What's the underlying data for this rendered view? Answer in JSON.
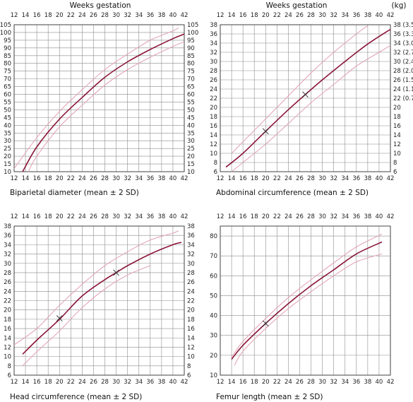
{
  "header_left": "Weeks gestation",
  "header_right": "Weeks gestation",
  "header_kg": "(kg)",
  "colors": {
    "mean": "#8b1538",
    "sd": "#e2a6b8",
    "grid": "#8c8c8c"
  },
  "chart_data": [
    {
      "type": "line",
      "title": "Biparietal diameter (mean ± 2 SD)",
      "xlim": [
        12,
        42
      ],
      "ylim": [
        10,
        105
      ],
      "x_ticks": [
        12,
        14,
        16,
        18,
        20,
        22,
        24,
        26,
        28,
        30,
        32,
        34,
        36,
        38,
        40,
        42
      ],
      "y_ticks": [
        10,
        15,
        20,
        25,
        30,
        35,
        40,
        45,
        50,
        55,
        60,
        65,
        70,
        75,
        80,
        85,
        90,
        95,
        100,
        105
      ],
      "y_ticks_right": [
        "10",
        "15",
        "20",
        "25",
        "30",
        "35",
        "40",
        "45",
        "50",
        "55",
        "60",
        "65",
        "70",
        "75",
        "80",
        "85",
        "90",
        "95",
        "100",
        "105"
      ],
      "series": [
        {
          "role": "mean",
          "x": [
            13.5,
            16,
            20,
            24,
            28,
            32,
            36,
            40,
            42
          ],
          "y": [
            10,
            26,
            44,
            58,
            71,
            81,
            89,
            96,
            99
          ]
        },
        {
          "role": "upper",
          "x": [
            12,
            16,
            20,
            24,
            28,
            32,
            36,
            40,
            41
          ],
          "y": [
            12,
            32,
            49,
            63,
            76,
            86,
            95,
            101,
            103
          ]
        },
        {
          "role": "lower",
          "x": [
            14.5,
            16,
            20,
            24,
            28,
            32,
            36,
            40,
            42
          ],
          "y": [
            10,
            20,
            39,
            53,
            66,
            76,
            84,
            91,
            94
          ]
        }
      ],
      "markers": []
    },
    {
      "type": "line",
      "title": "Abdominal circumference (mean ± 2 SD)",
      "xlim": [
        12,
        42
      ],
      "ylim": [
        6,
        38
      ],
      "x_ticks": [
        12,
        14,
        16,
        18,
        20,
        22,
        24,
        26,
        28,
        30,
        32,
        34,
        36,
        38,
        40,
        42
      ],
      "y_ticks": [
        6,
        8,
        10,
        12,
        14,
        16,
        18,
        20,
        22,
        24,
        26,
        28,
        30,
        32,
        34,
        36,
        38
      ],
      "y_ticks_right": [
        "6",
        "8",
        "10",
        "12",
        "14",
        "16",
        "18",
        "20",
        "22 (0.7)",
        "24 (1.1)",
        "26 (1.5)",
        "28 (2.0)",
        "30 (2.4)",
        "32 (2.7)",
        "34 (3.0)",
        "36 (3.3)",
        "38 (3.5)"
      ],
      "series": [
        {
          "role": "mean",
          "x": [
            13,
            16,
            20,
            24,
            27,
            30,
            34,
            38,
            42
          ],
          "y": [
            7,
            10,
            14.8,
            19.5,
            22.8,
            26,
            30,
            33.8,
            37
          ]
        },
        {
          "role": "upper",
          "x": [
            14,
            16,
            20,
            24,
            28,
            32,
            36,
            38
          ],
          "y": [
            10,
            12.5,
            17.5,
            22.5,
            27.5,
            32,
            36,
            37.8
          ]
        },
        {
          "role": "lower",
          "x": [
            14,
            16,
            20,
            24,
            28,
            32,
            36,
            40,
            42
          ],
          "y": [
            6,
            8,
            12,
            16.5,
            21,
            25,
            29,
            32,
            33.5
          ]
        }
      ],
      "markers": [
        {
          "x": 20,
          "y": 14.8
        },
        {
          "x": 27,
          "y": 22.8
        }
      ]
    },
    {
      "type": "line",
      "title": "Head circumference (mean ± 2 SD)",
      "xlim": [
        12,
        42
      ],
      "ylim": [
        6,
        38
      ],
      "x_ticks": [
        12,
        14,
        16,
        18,
        20,
        22,
        24,
        26,
        28,
        30,
        32,
        34,
        36,
        38,
        40,
        42
      ],
      "y_ticks": [
        6,
        8,
        10,
        12,
        14,
        16,
        18,
        20,
        22,
        24,
        26,
        28,
        30,
        32,
        34,
        36,
        38
      ],
      "y_ticks_right": [
        "6",
        "8",
        "10",
        "12",
        "14",
        "16",
        "18",
        "20",
        "22",
        "24",
        "26",
        "28",
        "30",
        "32",
        "34",
        "36",
        "38"
      ],
      "series": [
        {
          "role": "mean",
          "x": [
            13.5,
            16,
            20,
            24,
            28,
            30,
            32,
            36,
            40,
            41.5
          ],
          "y": [
            10.5,
            13.5,
            18,
            23,
            26.5,
            28,
            29.5,
            32,
            34,
            34.5
          ]
        },
        {
          "role": "upper",
          "x": [
            12,
            16,
            20,
            24,
            28,
            32,
            36,
            40,
            41
          ],
          "y": [
            12.5,
            16,
            21,
            25.5,
            29.5,
            32.5,
            35,
            36.5,
            37
          ]
        },
        {
          "role": "lower",
          "x": [
            13.5,
            16,
            20,
            24,
            28,
            32,
            36
          ],
          "y": [
            8,
            11,
            15.5,
            20.5,
            24.5,
            27.5,
            29.5
          ]
        }
      ],
      "markers": [
        {
          "x": 20,
          "y": 18.2
        },
        {
          "x": 30,
          "y": 28
        }
      ]
    },
    {
      "type": "line",
      "title": "Femur length (mean ± 2 SD)",
      "xlim": [
        12,
        42
      ],
      "ylim": [
        10,
        85
      ],
      "x_ticks": [
        12,
        14,
        16,
        18,
        20,
        22,
        24,
        26,
        28,
        30,
        32,
        34,
        36,
        38,
        40,
        42
      ],
      "y_ticks": [
        10,
        20,
        30,
        40,
        50,
        60,
        70,
        80
      ],
      "y_ticks_right": [],
      "series": [
        {
          "role": "mean",
          "x": [
            14,
            16,
            20,
            24,
            28,
            32,
            36,
            40.5
          ],
          "y": [
            18,
            25,
            36,
            46,
            55,
            63,
            71,
            77
          ]
        },
        {
          "role": "upper",
          "x": [
            14,
            16,
            20,
            24,
            28,
            32,
            36,
            40.5
          ],
          "y": [
            19,
            27,
            38.5,
            49,
            58,
            66.5,
            74.5,
            81
          ]
        },
        {
          "role": "lower",
          "x": [
            14.5,
            16,
            20,
            24,
            28,
            32,
            36,
            40.5
          ],
          "y": [
            15,
            22,
            33.5,
            43.5,
            52,
            60,
            67,
            71
          ]
        }
      ],
      "markers": [
        {
          "x": 20,
          "y": 36
        }
      ]
    }
  ]
}
